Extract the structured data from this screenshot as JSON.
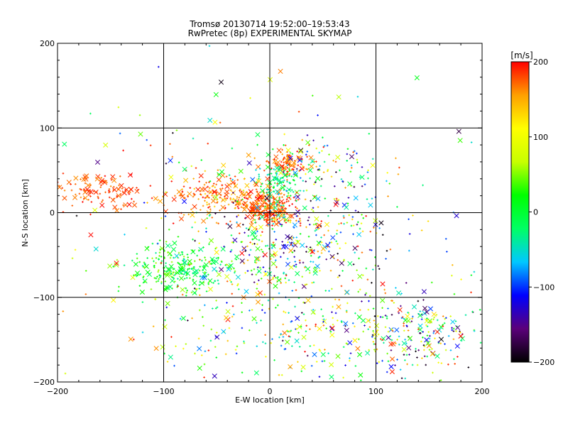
{
  "chart_data": {
    "type": "scatter",
    "title": "Tromsø 20130714  19:52:00–19:53:43",
    "subtitle": "RwPretec (8p) EXPERIMENTAL SKYMAP",
    "xlabel": "E-W location [km]",
    "ylabel": "N-S location [km]",
    "xlim": [
      -200,
      200
    ],
    "ylim": [
      -200,
      200
    ],
    "xticks": [
      -200,
      -100,
      0,
      100,
      200
    ],
    "yticks": [
      -200,
      -100,
      0,
      100,
      200
    ],
    "xtick_labels": [
      "−200",
      "−100",
      "0",
      "100",
      "200"
    ],
    "ytick_labels": [
      "−200",
      "−100",
      "0",
      "100",
      "200"
    ],
    "grid": true,
    "marker_styles": [
      "plus (small)",
      "x (large)"
    ],
    "color_scale": {
      "label": "[m/s]",
      "min": -200,
      "max": 200,
      "ticks": [
        200,
        100,
        0,
        -100,
        -200
      ],
      "tick_labels": [
        "200",
        "100",
        "0",
        "−100",
        "−200"
      ],
      "colormap": [
        "#000000",
        "#5b007a",
        "#0000ff",
        "#00c8ff",
        "#00ff64",
        "#00ff00",
        "#c8ff00",
        "#ffff00",
        "#ffa000",
        "#ff0000"
      ]
    },
    "clusters": [
      {
        "name": "central red",
        "x": -5,
        "y": 5,
        "sx": 14,
        "sy": 10,
        "v": [
          150,
          200
        ],
        "count": 280
      },
      {
        "name": "north-center red",
        "x": 15,
        "y": 58,
        "sx": 10,
        "sy": 8,
        "v": [
          150,
          200
        ],
        "count": 110
      },
      {
        "name": "west red band",
        "x": -160,
        "y": 25,
        "sx": 22,
        "sy": 10,
        "v": [
          160,
          200
        ],
        "count": 120
      },
      {
        "name": "west-center red",
        "x": -50,
        "y": 20,
        "sx": 25,
        "sy": 15,
        "v": [
          130,
          200
        ],
        "count": 180
      },
      {
        "name": "north-center cyan",
        "x": 10,
        "y": 38,
        "sx": 9,
        "sy": 12,
        "v": [
          -60,
          20
        ],
        "count": 90
      },
      {
        "name": "southwest green",
        "x": -85,
        "y": -65,
        "sx": 25,
        "sy": 15,
        "v": [
          -40,
          60
        ],
        "count": 260
      },
      {
        "name": "center-south mixed",
        "x": 0,
        "y": -40,
        "sx": 30,
        "sy": 30,
        "v": [
          -200,
          200
        ],
        "count": 220
      },
      {
        "name": "east mixed",
        "x": 60,
        "y": -20,
        "sx": 35,
        "sy": 30,
        "v": [
          -200,
          200
        ],
        "count": 130
      },
      {
        "name": "east-northeast",
        "x": 55,
        "y": 50,
        "sx": 25,
        "sy": 20,
        "v": [
          -200,
          200
        ],
        "count": 90
      },
      {
        "name": "southeast mixed",
        "x": 140,
        "y": -140,
        "sx": 30,
        "sy": 25,
        "v": [
          -200,
          200
        ],
        "count": 200
      },
      {
        "name": "south mixed",
        "x": 30,
        "y": -140,
        "sx": 70,
        "sy": 35,
        "v": [
          -120,
          200
        ],
        "count": 260
      },
      {
        "name": "scatter field",
        "x": 0,
        "y": -20,
        "sx": 120,
        "sy": 90,
        "v": [
          -200,
          200
        ],
        "count": 260
      }
    ]
  }
}
